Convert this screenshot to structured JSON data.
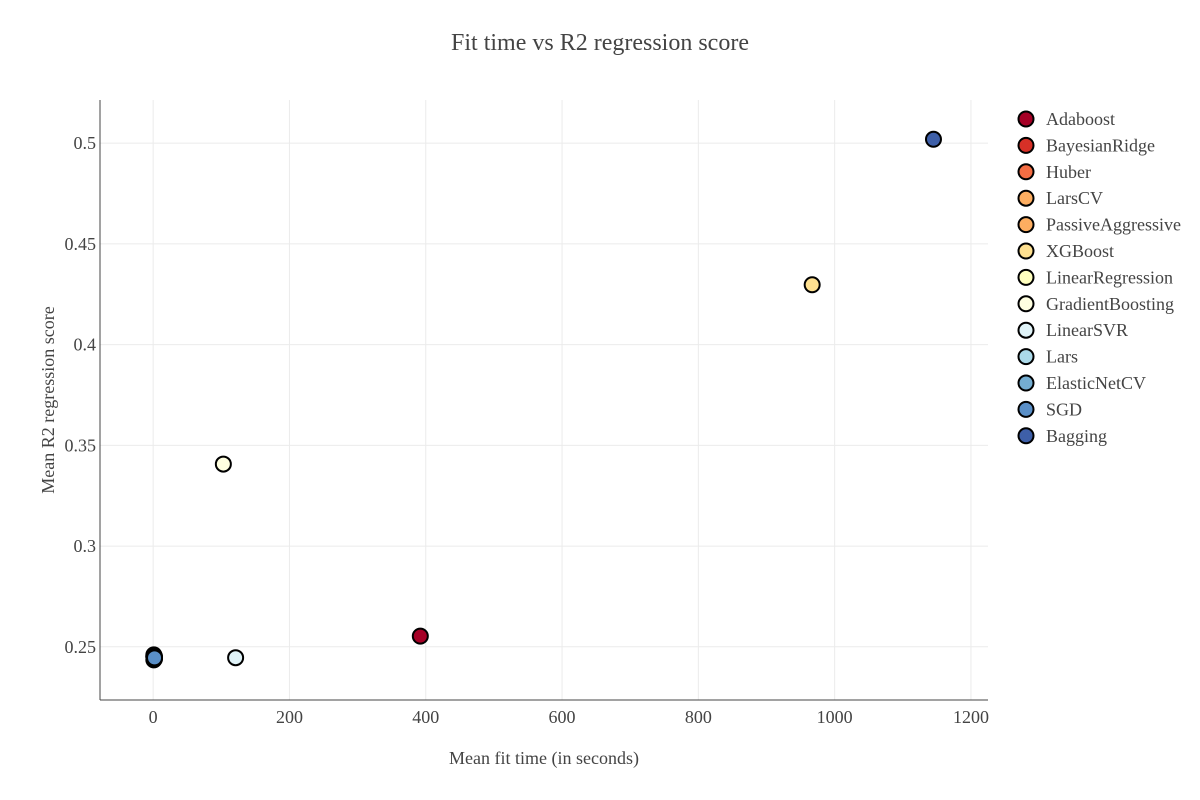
{
  "chart_data": {
    "type": "scatter",
    "title": "Fit time vs R2 regression score",
    "xlabel": "Mean fit time (in seconds)",
    "ylabel": "Mean R2 regression score",
    "xlim": [
      -78,
      1225
    ],
    "ylim": [
      0.2236,
      0.5214
    ],
    "x_ticks": [
      0,
      200,
      400,
      600,
      800,
      1000,
      1200
    ],
    "y_ticks": [
      0.25,
      0.3,
      0.35,
      0.4,
      0.45,
      0.5
    ],
    "grid": true,
    "legend_position": "right",
    "series": [
      {
        "name": "Adaboost",
        "color": "#a50026",
        "x": [
          392
        ],
        "y": [
          0.2553
        ]
      },
      {
        "name": "BayesianRidge",
        "color": "#d73027",
        "x": [
          1
        ],
        "y": [
          0.2435
        ]
      },
      {
        "name": "Huber",
        "color": "#f46d43",
        "x": [
          2
        ],
        "y": [
          0.244
        ]
      },
      {
        "name": "LarsCV",
        "color": "#fdae61",
        "x": [
          1
        ],
        "y": [
          0.2455
        ]
      },
      {
        "name": "PassiveAggressive",
        "color": "#fdae61",
        "x": [
          1
        ],
        "y": [
          0.245
        ]
      },
      {
        "name": "XGBoost",
        "color": "#fee090",
        "x": [
          967
        ],
        "y": [
          0.4297
        ]
      },
      {
        "name": "LinearRegression",
        "color": "#ffffbf",
        "x": [
          1
        ],
        "y": [
          0.246
        ]
      },
      {
        "name": "GradientBoosting",
        "color": "#ffffe0",
        "x": [
          103
        ],
        "y": [
          0.3407
        ]
      },
      {
        "name": "LinearSVR",
        "color": "#e0f3f8",
        "x": [
          121
        ],
        "y": [
          0.2446
        ]
      },
      {
        "name": "Lars",
        "color": "#abd9e9",
        "x": [
          2
        ],
        "y": [
          0.2452
        ]
      },
      {
        "name": "ElasticNetCV",
        "color": "#74add1",
        "x": [
          1
        ],
        "y": [
          0.245
        ]
      },
      {
        "name": "SGD",
        "color": "#5a8fc7",
        "x": [
          2
        ],
        "y": [
          0.2445
        ]
      },
      {
        "name": "Bagging",
        "color": "#3e5fa8",
        "x": [
          1145
        ],
        "y": [
          0.5019
        ]
      }
    ]
  }
}
